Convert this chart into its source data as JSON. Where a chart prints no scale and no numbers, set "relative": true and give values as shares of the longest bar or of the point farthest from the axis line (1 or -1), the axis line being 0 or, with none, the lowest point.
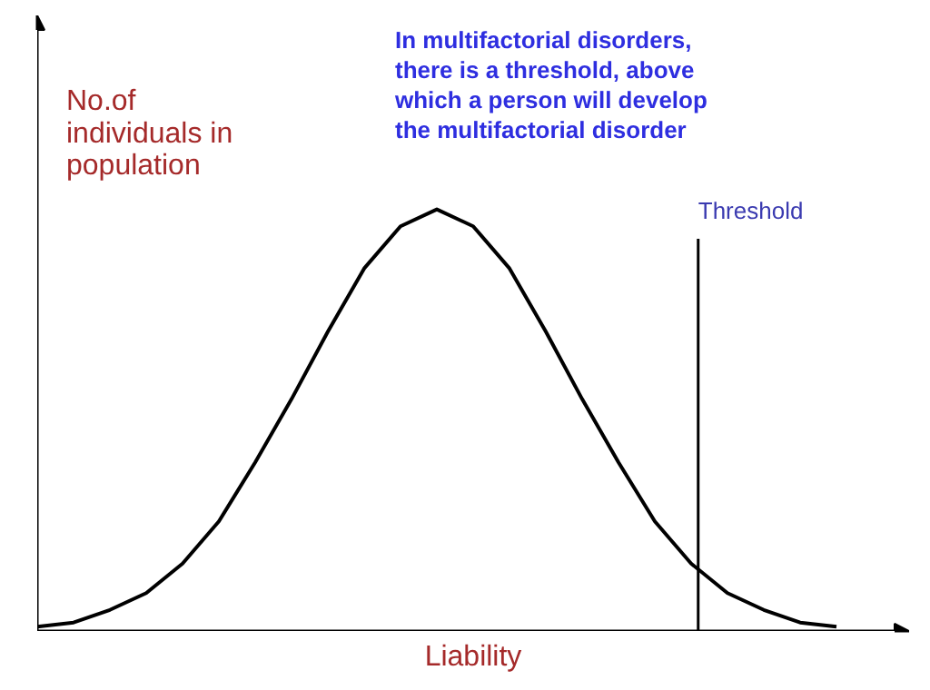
{
  "chart_data": {
    "type": "line",
    "relative": true,
    "title": "In multifactorial disorders, there is a threshold, above which a person will develop the multifactorial disorder",
    "ylabel": "No.of individuals in population",
    "xlabel": "Liability",
    "categories": [
      null,
      null,
      null,
      null,
      null,
      null,
      null,
      null,
      null,
      null,
      null,
      null,
      null,
      null,
      null,
      null,
      null,
      null,
      null,
      null,
      null,
      null,
      null
    ],
    "series": [
      {
        "color": "#000000",
        "values": [
          0.01,
          0.02,
          0.05,
          0.09,
          0.16,
          0.26,
          0.4,
          0.55,
          0.71,
          0.86,
          0.96,
          1,
          0.96,
          0.86,
          0.71,
          0.55,
          0.4,
          0.26,
          0.16,
          0.09,
          0.05,
          0.02,
          0.01
        ]
      }
    ],
    "annotations": [
      "Threshold"
    ],
    "grid": false
  }
}
